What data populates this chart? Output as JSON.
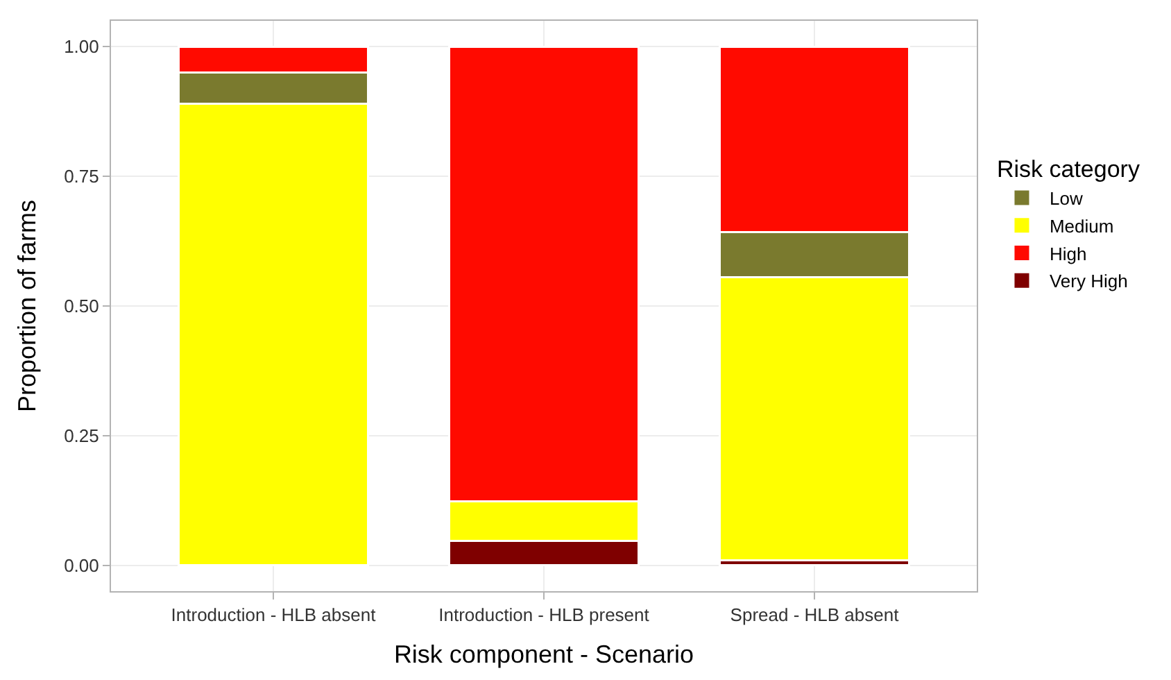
{
  "chart_data": {
    "type": "bar",
    "stacked": true,
    "xlabel": "Risk component - Scenario",
    "ylabel": "Proportion of farms",
    "legend_title": "Risk category",
    "legend": "right",
    "grid": true,
    "categories": [
      "Introduction - HLB absent",
      "Introduction - HLB present",
      "Spread - HLB absent"
    ],
    "series": [
      {
        "name": "Very High",
        "color": "#7f0000",
        "values": [
          0,
          0.047,
          0.01
        ]
      },
      {
        "name": "Medium",
        "color": "#ffff00",
        "values": [
          0.89,
          0.076,
          0.546
        ]
      },
      {
        "name": "Low",
        "color": "#7a7a2e",
        "values": [
          0.06,
          0,
          0.086
        ]
      },
      {
        "name": "High",
        "color": "#ff0a00",
        "values": [
          0.05,
          0.877,
          0.358
        ]
      }
    ],
    "ylim": [
      -0.05,
      1.05
    ],
    "yticks": [
      {
        "value": 0,
        "label": "0.00"
      },
      {
        "value": 0.25,
        "label": "0.25"
      },
      {
        "value": 0.5,
        "label": "0.50"
      },
      {
        "value": 0.75,
        "label": "0.75"
      },
      {
        "value": 1,
        "label": "1.00"
      }
    ]
  }
}
